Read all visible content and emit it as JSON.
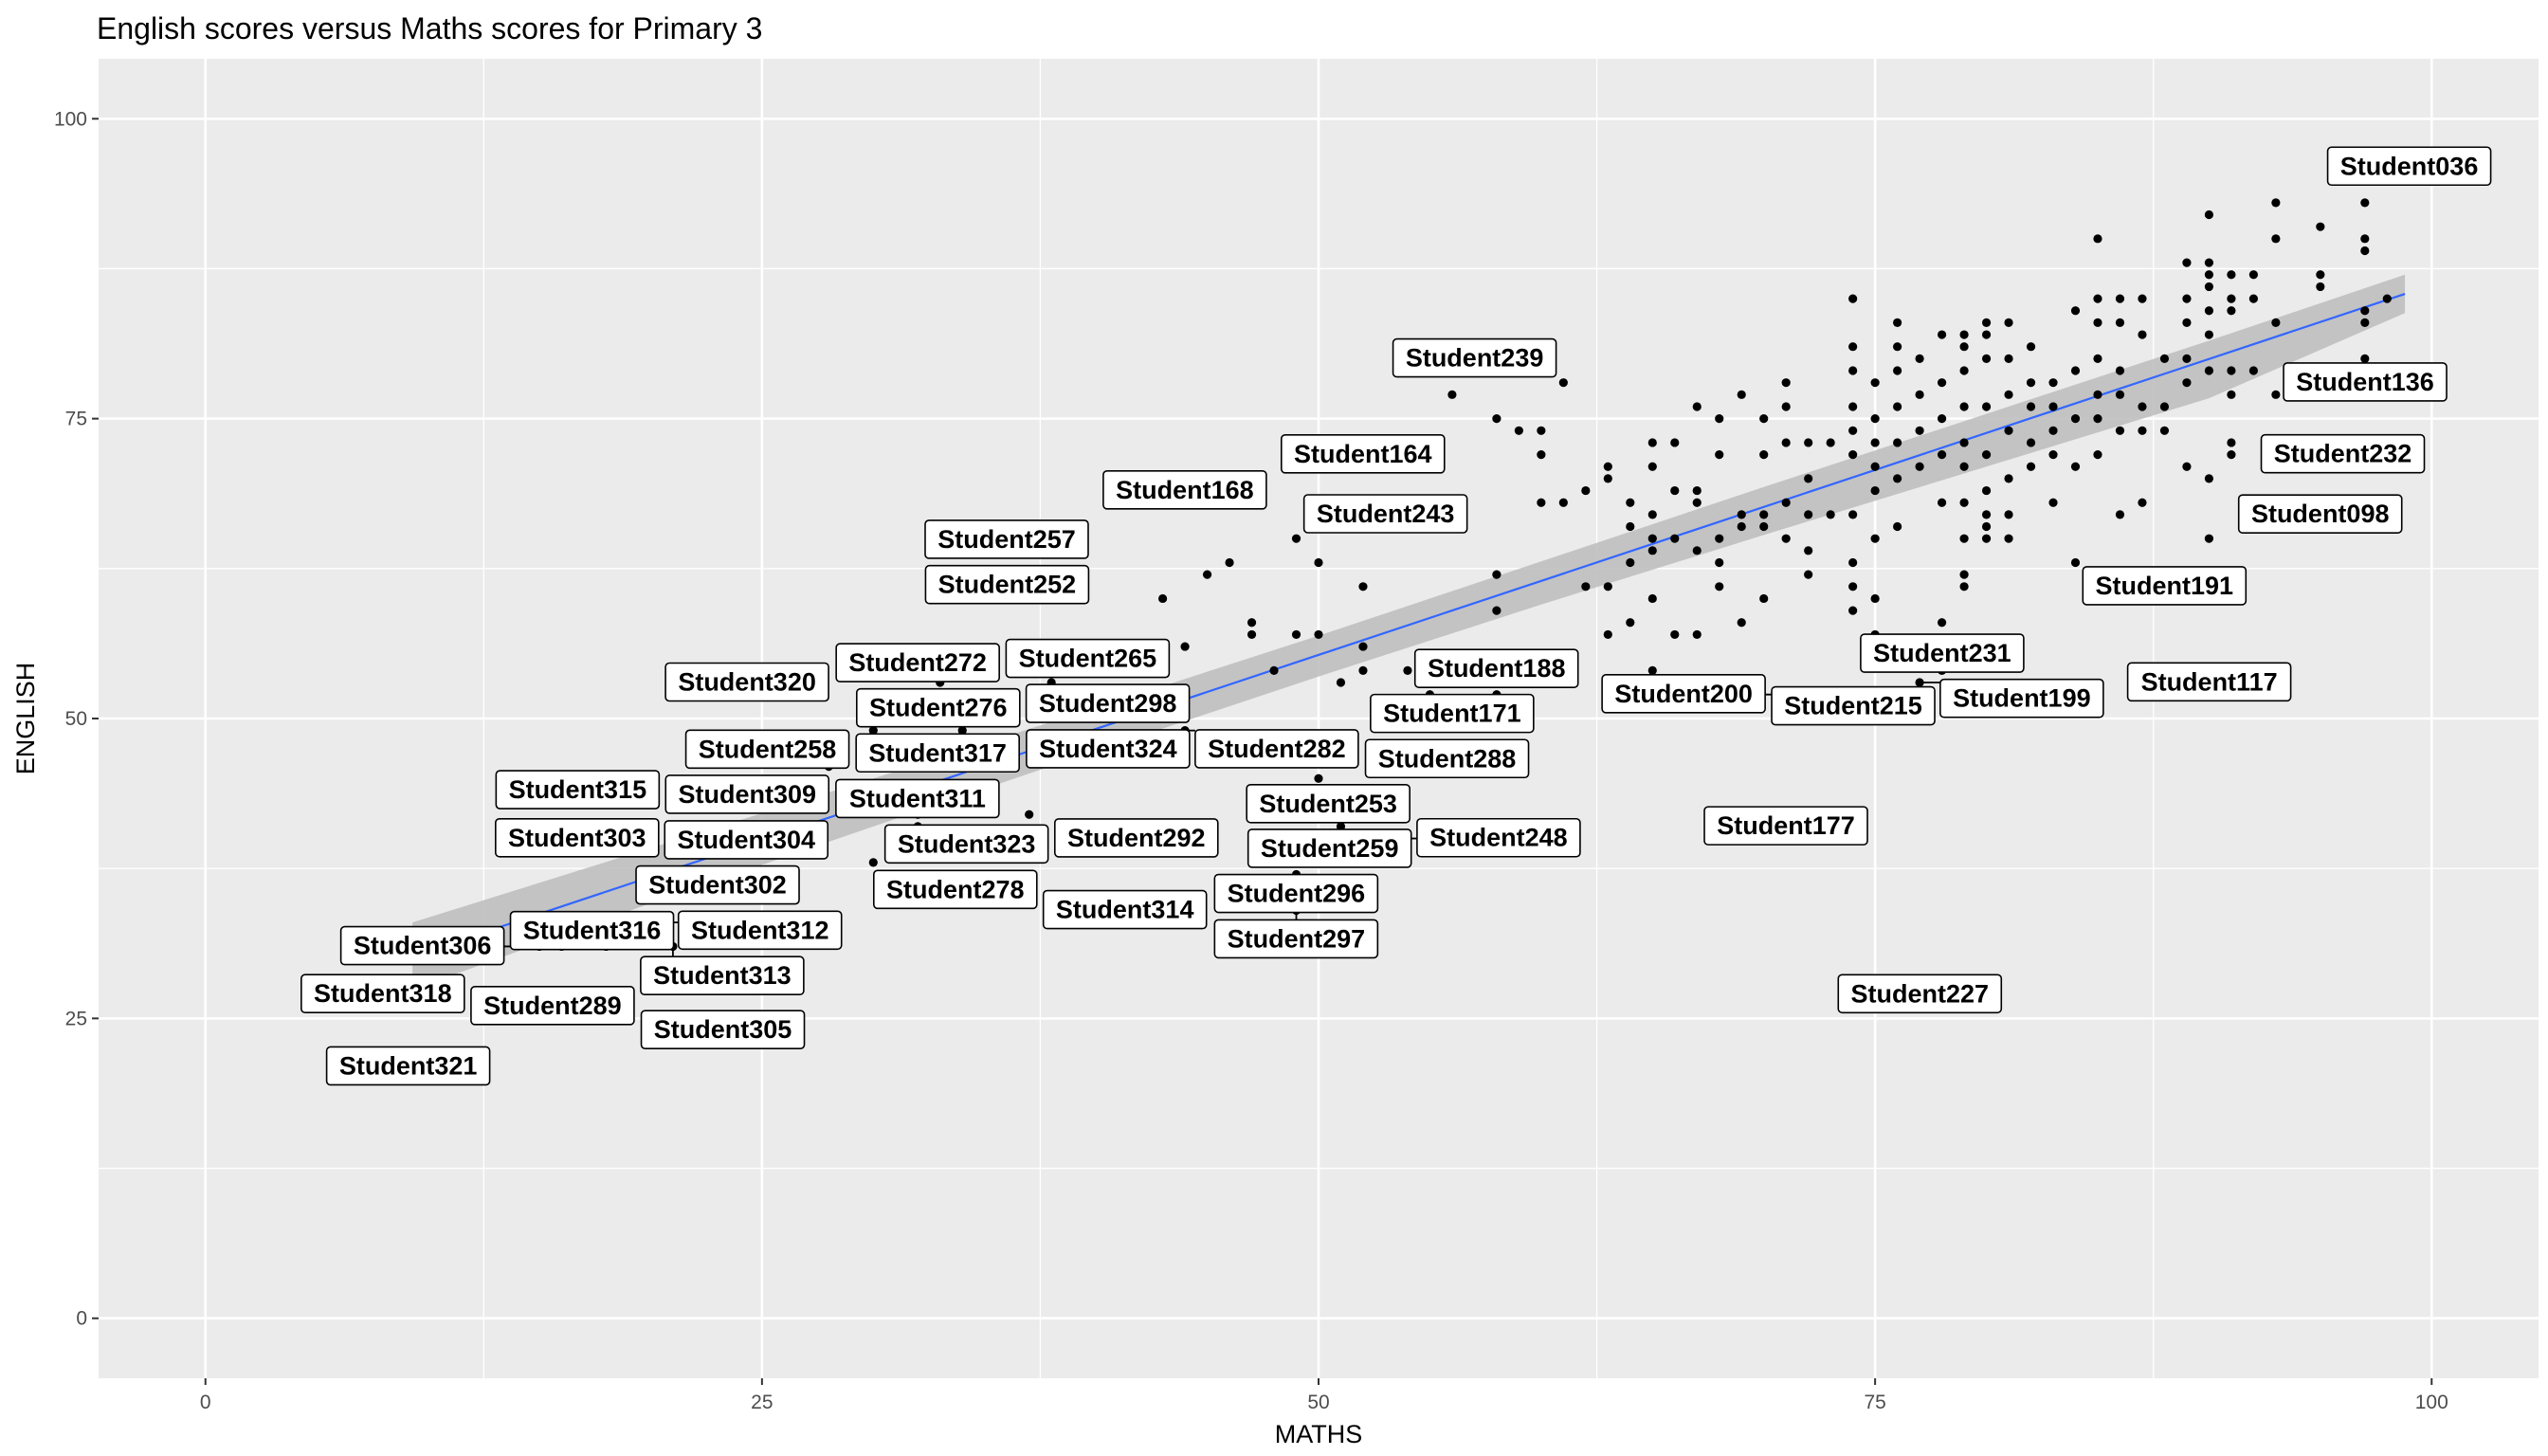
{
  "chart_data": {
    "type": "scatter",
    "title": "English scores versus Maths scores for Primary 3",
    "xlabel": "MATHS",
    "ylabel": "ENGLISH",
    "xlim": [
      -4.8,
      104.8
    ],
    "ylim": [
      -5,
      105
    ],
    "x_ticks": [
      0,
      25,
      50,
      75,
      100
    ],
    "y_ticks": [
      0,
      25,
      50,
      75,
      100
    ],
    "grid": true,
    "colors": {
      "panel": "#ebebeb",
      "grid": "#ffffff",
      "point": "#000000",
      "trend_line": "#3366ff",
      "confidence_band": "#bfbfbf"
    },
    "trend_line": {
      "x": [
        9.3,
        98.8
      ],
      "y": [
        30.2,
        85.4
      ]
    },
    "confidence_band": {
      "x": [
        9.3,
        20,
        30,
        40,
        50,
        60,
        70,
        80,
        90,
        98.8
      ],
      "upper": [
        33.0,
        39.2,
        45.0,
        50.9,
        56.9,
        63.1,
        69.3,
        75.4,
        81.5,
        87.0
      ],
      "lower": [
        27.4,
        34.6,
        41.0,
        47.3,
        53.5,
        59.5,
        65.3,
        71.0,
        76.7,
        83.8
      ]
    },
    "points": [
      [
        9.1,
        21
      ],
      [
        11,
        27
      ],
      [
        13,
        31
      ],
      [
        15,
        31
      ],
      [
        16,
        26
      ],
      [
        16,
        31
      ],
      [
        18,
        31
      ],
      [
        19,
        33
      ],
      [
        19,
        44
      ],
      [
        20,
        40
      ],
      [
        21,
        31
      ],
      [
        21,
        39
      ],
      [
        22,
        24
      ],
      [
        23,
        36
      ],
      [
        24,
        44
      ],
      [
        25,
        43
      ],
      [
        25,
        53
      ],
      [
        28,
        46
      ],
      [
        30,
        38
      ],
      [
        30,
        43
      ],
      [
        30,
        49
      ],
      [
        32,
        42
      ],
      [
        32,
        41
      ],
      [
        33,
        53
      ],
      [
        34,
        49
      ],
      [
        35,
        36
      ],
      [
        35,
        43
      ],
      [
        35,
        50
      ],
      [
        36,
        36
      ],
      [
        36,
        40
      ],
      [
        36,
        64
      ],
      [
        37,
        42
      ],
      [
        37,
        56
      ],
      [
        38,
        51
      ],
      [
        38,
        53
      ],
      [
        39,
        34
      ],
      [
        40,
        40
      ],
      [
        41,
        48
      ],
      [
        42,
        52
      ],
      [
        43,
        55
      ],
      [
        43,
        60
      ],
      [
        44,
        49
      ],
      [
        44,
        56
      ],
      [
        44,
        69
      ],
      [
        45,
        62
      ],
      [
        46,
        63
      ],
      [
        47,
        58
      ],
      [
        47,
        57
      ],
      [
        48,
        54
      ],
      [
        49,
        37
      ],
      [
        49,
        57
      ],
      [
        49,
        65
      ],
      [
        49,
        34
      ],
      [
        50,
        45
      ],
      [
        50,
        57
      ],
      [
        50,
        63
      ],
      [
        51,
        41
      ],
      [
        51,
        53
      ],
      [
        52,
        54
      ],
      [
        52,
        56
      ],
      [
        52,
        61
      ],
      [
        53,
        67
      ],
      [
        54,
        40
      ],
      [
        54,
        54
      ],
      [
        55,
        52
      ],
      [
        56,
        50
      ],
      [
        56,
        77
      ],
      [
        57,
        80
      ],
      [
        58,
        50
      ],
      [
        58,
        52
      ],
      [
        58,
        59
      ],
      [
        58,
        62
      ],
      [
        58,
        75
      ],
      [
        59,
        54
      ],
      [
        59,
        74
      ],
      [
        60,
        68
      ],
      [
        60,
        72
      ],
      [
        60,
        74
      ],
      [
        61,
        68
      ],
      [
        61,
        78
      ],
      [
        62,
        61
      ],
      [
        62,
        69
      ],
      [
        63,
        57
      ],
      [
        63,
        61
      ],
      [
        63,
        70
      ],
      [
        63,
        71
      ],
      [
        64,
        58
      ],
      [
        64,
        63
      ],
      [
        64,
        66
      ],
      [
        64,
        68
      ],
      [
        65,
        54
      ],
      [
        65,
        60
      ],
      [
        65,
        64
      ],
      [
        65,
        65
      ],
      [
        65,
        67
      ],
      [
        65,
        71
      ],
      [
        65,
        73
      ],
      [
        66,
        57
      ],
      [
        66,
        65
      ],
      [
        66,
        69
      ],
      [
        66,
        73
      ],
      [
        67,
        57
      ],
      [
        67,
        64
      ],
      [
        67,
        68
      ],
      [
        67,
        69
      ],
      [
        67,
        76
      ],
      [
        68,
        61
      ],
      [
        68,
        63
      ],
      [
        68,
        65
      ],
      [
        68,
        72
      ],
      [
        68,
        75
      ],
      [
        69,
        58
      ],
      [
        69,
        66
      ],
      [
        69,
        67
      ],
      [
        69,
        77
      ],
      [
        70,
        60
      ],
      [
        70,
        66
      ],
      [
        70,
        67
      ],
      [
        70,
        72
      ],
      [
        70,
        75
      ],
      [
        71,
        52
      ],
      [
        71,
        41
      ],
      [
        71,
        65
      ],
      [
        71,
        68
      ],
      [
        71,
        73
      ],
      [
        71,
        76
      ],
      [
        71,
        78
      ],
      [
        72,
        62
      ],
      [
        72,
        64
      ],
      [
        72,
        67
      ],
      [
        72,
        70
      ],
      [
        72,
        73
      ],
      [
        73,
        67
      ],
      [
        73,
        73
      ],
      [
        74,
        51
      ],
      [
        74,
        59
      ],
      [
        74,
        61
      ],
      [
        74,
        63
      ],
      [
        74,
        67
      ],
      [
        74,
        72
      ],
      [
        74,
        74
      ],
      [
        74,
        76
      ],
      [
        74,
        79
      ],
      [
        74,
        81
      ],
      [
        74,
        85
      ],
      [
        75,
        57
      ],
      [
        75,
        60
      ],
      [
        75,
        65
      ],
      [
        75,
        69
      ],
      [
        75,
        71
      ],
      [
        75,
        73
      ],
      [
        75,
        75
      ],
      [
        75,
        78
      ],
      [
        76,
        66
      ],
      [
        76,
        70
      ],
      [
        76,
        73
      ],
      [
        76,
        76
      ],
      [
        76,
        79
      ],
      [
        76,
        81
      ],
      [
        76,
        83
      ],
      [
        77,
        27
      ],
      [
        77,
        53
      ],
      [
        77,
        71
      ],
      [
        77,
        74
      ],
      [
        77,
        77
      ],
      [
        77,
        80
      ],
      [
        78,
        54
      ],
      [
        78,
        58
      ],
      [
        78,
        68
      ],
      [
        78,
        72
      ],
      [
        78,
        75
      ],
      [
        78,
        78
      ],
      [
        78,
        82
      ],
      [
        79,
        61
      ],
      [
        79,
        62
      ],
      [
        79,
        65
      ],
      [
        79,
        68
      ],
      [
        79,
        71
      ],
      [
        79,
        73
      ],
      [
        79,
        76
      ],
      [
        79,
        79
      ],
      [
        79,
        81
      ],
      [
        79,
        82
      ],
      [
        80,
        65
      ],
      [
        80,
        66
      ],
      [
        80,
        67
      ],
      [
        80,
        69
      ],
      [
        80,
        72
      ],
      [
        80,
        76
      ],
      [
        80,
        80
      ],
      [
        80,
        82
      ],
      [
        80,
        83
      ],
      [
        81,
        65
      ],
      [
        81,
        67
      ],
      [
        81,
        70
      ],
      [
        81,
        74
      ],
      [
        81,
        77
      ],
      [
        81,
        80
      ],
      [
        81,
        83
      ],
      [
        82,
        71
      ],
      [
        82,
        73
      ],
      [
        82,
        76
      ],
      [
        82,
        78
      ],
      [
        82,
        81
      ],
      [
        83,
        68
      ],
      [
        83,
        72
      ],
      [
        83,
        74
      ],
      [
        83,
        76
      ],
      [
        83,
        78
      ],
      [
        84,
        63
      ],
      [
        84,
        71
      ],
      [
        84,
        75
      ],
      [
        84,
        79
      ],
      [
        84,
        84
      ],
      [
        85,
        61
      ],
      [
        85,
        62
      ],
      [
        85,
        72
      ],
      [
        85,
        75
      ],
      [
        85,
        77
      ],
      [
        85,
        80
      ],
      [
        85,
        83
      ],
      [
        85,
        85
      ],
      [
        85,
        90
      ],
      [
        86,
        67
      ],
      [
        86,
        74
      ],
      [
        86,
        77
      ],
      [
        86,
        79
      ],
      [
        86,
        83
      ],
      [
        86,
        85
      ],
      [
        87,
        68
      ],
      [
        87,
        74
      ],
      [
        87,
        76
      ],
      [
        87,
        82
      ],
      [
        87,
        85
      ],
      [
        88,
        61
      ],
      [
        88,
        74
      ],
      [
        88,
        76
      ],
      [
        88,
        80
      ],
      [
        89,
        71
      ],
      [
        89,
        78
      ],
      [
        89,
        80
      ],
      [
        89,
        83
      ],
      [
        89,
        85
      ],
      [
        89,
        88
      ],
      [
        90,
        53
      ],
      [
        90,
        65
      ],
      [
        90,
        70
      ],
      [
        90,
        79
      ],
      [
        90,
        82
      ],
      [
        90,
        84
      ],
      [
        90,
        86
      ],
      [
        90,
        87
      ],
      [
        90,
        88
      ],
      [
        90,
        92
      ],
      [
        91,
        72
      ],
      [
        91,
        73
      ],
      [
        91,
        77
      ],
      [
        91,
        79
      ],
      [
        91,
        84
      ],
      [
        91,
        85
      ],
      [
        91,
        87
      ],
      [
        92,
        79
      ],
      [
        92,
        85
      ],
      [
        92,
        87
      ],
      [
        93,
        77
      ],
      [
        93,
        83
      ],
      [
        93,
        90
      ],
      [
        93,
        93
      ],
      [
        94,
        79
      ],
      [
        95,
        67
      ],
      [
        95,
        78
      ],
      [
        95,
        86
      ],
      [
        95,
        87
      ],
      [
        95,
        91
      ],
      [
        96,
        72
      ],
      [
        97,
        80
      ],
      [
        97,
        83
      ],
      [
        97,
        84
      ],
      [
        97,
        89
      ],
      [
        97,
        90
      ],
      [
        97,
        93
      ],
      [
        98,
        85
      ],
      [
        99,
        96
      ]
    ],
    "labels": [
      {
        "text": "Student036",
        "x": 99,
        "y": 96
      },
      {
        "text": "Student136",
        "x": 97,
        "y": 78
      },
      {
        "text": "Student232",
        "x": 96,
        "y": 72
      },
      {
        "text": "Student098",
        "x": 95,
        "y": 67
      },
      {
        "text": "Student191",
        "x": 88,
        "y": 61
      },
      {
        "text": "Student117",
        "x": 90,
        "y": 53
      },
      {
        "text": "Student231",
        "x": 78,
        "y": 54
      },
      {
        "text": "Student199",
        "x": 77,
        "y": 53
      },
      {
        "text": "Student227",
        "x": 77,
        "y": 27
      },
      {
        "text": "Student200",
        "x": 71,
        "y": 52
      },
      {
        "text": "Student215",
        "x": 74,
        "y": 51
      },
      {
        "text": "Student177",
        "x": 71,
        "y": 41
      },
      {
        "text": "Student239",
        "x": 57,
        "y": 80
      },
      {
        "text": "Student164",
        "x": 52,
        "y": 72
      },
      {
        "text": "Student168",
        "x": 44,
        "y": 69
      },
      {
        "text": "Student243",
        "x": 53,
        "y": 67
      },
      {
        "text": "Student257",
        "x": 36,
        "y": 64
      },
      {
        "text": "Student252",
        "x": 36,
        "y": 62
      },
      {
        "text": "Student265",
        "x": 38,
        "y": 53
      },
      {
        "text": "Student272",
        "x": 33,
        "y": 53
      },
      {
        "text": "Student276",
        "x": 35,
        "y": 50
      },
      {
        "text": "Student298",
        "x": 38,
        "y": 51
      },
      {
        "text": "Student282",
        "x": 44,
        "y": 49
      },
      {
        "text": "Student188",
        "x": 58,
        "y": 52
      },
      {
        "text": "Student171",
        "x": 56,
        "y": 50
      },
      {
        "text": "Student288",
        "x": 55,
        "y": 46
      },
      {
        "text": "Student324",
        "x": 42,
        "y": 48
      },
      {
        "text": "Student248",
        "x": 54,
        "y": 40
      },
      {
        "text": "Student320",
        "x": 25,
        "y": 53
      },
      {
        "text": "Student258",
        "x": 28,
        "y": 46
      },
      {
        "text": "Student317",
        "x": 34,
        "y": 49
      },
      {
        "text": "Student315",
        "x": 19,
        "y": 44
      },
      {
        "text": "Student309",
        "x": 24,
        "y": 44
      },
      {
        "text": "Student303",
        "x": 20,
        "y": 40
      },
      {
        "text": "Student311",
        "x": 30,
        "y": 43
      },
      {
        "text": "Student292",
        "x": 40,
        "y": 40
      },
      {
        "text": "Student323",
        "x": 36,
        "y": 40
      },
      {
        "text": "Student253",
        "x": 51,
        "y": 41
      },
      {
        "text": "Student259",
        "x": 54,
        "y": 40
      },
      {
        "text": "Student304",
        "x": 21,
        "y": 39
      },
      {
        "text": "Student312",
        "x": 19,
        "y": 33
      },
      {
        "text": "Student302",
        "x": 23,
        "y": 36
      },
      {
        "text": "Student278",
        "x": 36,
        "y": 36
      },
      {
        "text": "Student296",
        "x": 49,
        "y": 37
      },
      {
        "text": "Student297",
        "x": 49,
        "y": 34
      },
      {
        "text": "Student306",
        "x": 15,
        "y": 31
      },
      {
        "text": "Student316",
        "x": 18,
        "y": 31
      },
      {
        "text": "Student313",
        "x": 21,
        "y": 31
      },
      {
        "text": "Student314",
        "x": 39,
        "y": 34
      },
      {
        "text": "Student318",
        "x": 11,
        "y": 27
      },
      {
        "text": "Student289",
        "x": 16,
        "y": 26
      },
      {
        "text": "Student305",
        "x": 22,
        "y": 24
      },
      {
        "text": "Student321",
        "x": 9.1,
        "y": 21
      }
    ]
  }
}
